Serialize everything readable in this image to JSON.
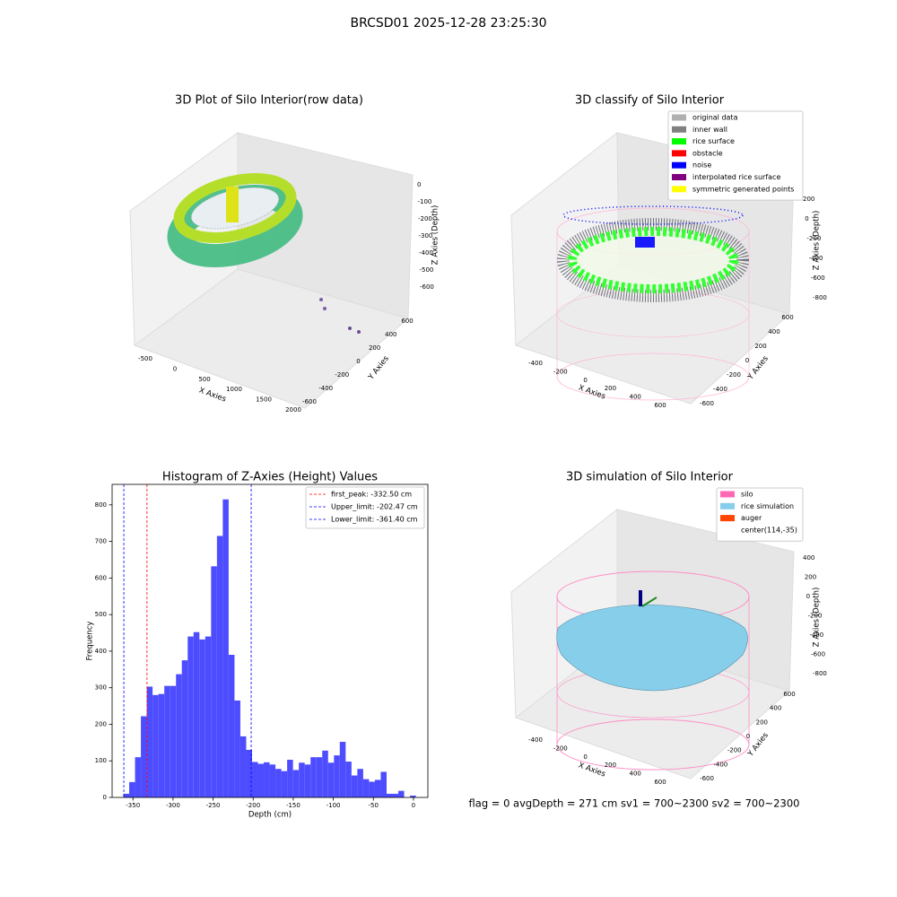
{
  "title": "BRCSD01 2025-12-28 23:25:30",
  "footer": "flag = 0     avgDepth = 271 cm  sv1 = 700~2300  sv2 = 700~2300",
  "chart_data": [
    {
      "type": "scatter3d",
      "title": "3D Plot of Silo Interior(row data)",
      "xlabel": "X Axies",
      "ylabel": "Y Axies",
      "zlabel": "Z Axies (Depth)",
      "xticks": [
        -500,
        0,
        500,
        1000,
        1500,
        2000
      ],
      "yticks": [
        -600,
        -400,
        -200,
        0,
        200,
        400,
        600
      ],
      "zticks": [
        0,
        -100,
        -200,
        -300,
        -400,
        -500,
        -600
      ]
    },
    {
      "type": "scatter3d",
      "title": "3D classify of Silo Interior",
      "xlabel": "X Axies",
      "ylabel": "Y Axies",
      "zlabel": "Z Axies (Depth)",
      "xticks": [
        -400,
        -200,
        0,
        200,
        400,
        600
      ],
      "yticks": [
        -600,
        -400,
        -200,
        0,
        200,
        400,
        600
      ],
      "zticks": [
        200,
        0,
        -200,
        -400,
        -600,
        -800
      ],
      "legend": [
        {
          "name": "original data",
          "color": "#b0b0b0"
        },
        {
          "name": "inner wall",
          "color": "#808080"
        },
        {
          "name": "rice surface",
          "color": "#00ff00"
        },
        {
          "name": "obstacle",
          "color": "#ff0000"
        },
        {
          "name": "noise",
          "color": "#0000ff"
        },
        {
          "name": "interpolated rice surface",
          "color": "#800080"
        },
        {
          "name": "symmetric generated points",
          "color": "#ffff00"
        }
      ]
    },
    {
      "type": "histogram",
      "title": "Histogram of Z-Axies (Height) Values",
      "xlabel": "Depth (cm)",
      "ylabel": "Frequency",
      "color": "#4d4dff",
      "bins": [
        -362,
        -354.7,
        -347.4,
        -340.1,
        -332.8,
        -325.5,
        -318.2,
        -310.9,
        -303.6,
        -296.3,
        -289,
        -281.7,
        -274.4,
        -267.1,
        -259.8,
        -252.5,
        -245.2,
        -237.9,
        -230.6,
        -223.3,
        -216,
        -208.7,
        -201.4,
        -194.1,
        -186.8,
        -179.5,
        -172.2,
        -164.9,
        -157.6,
        -150.3,
        -143,
        -135.7,
        -128.4,
        -121.1,
        -113.8,
        -106.5,
        -99.2,
        -91.9,
        -84.6,
        -77.3,
        -70,
        -62.7,
        -55.4,
        -48.1,
        -40.8,
        -33.5,
        -26.2,
        -18.9,
        -11.6,
        -4.3,
        3
      ],
      "values": [
        10,
        42,
        110,
        222,
        303,
        280,
        283,
        305,
        305,
        337,
        375,
        440,
        452,
        432,
        440,
        632,
        715,
        815,
        390,
        265,
        167,
        130,
        97,
        92,
        96,
        90,
        78,
        72,
        103,
        75,
        95,
        90,
        110,
        110,
        128,
        95,
        115,
        152,
        98,
        60,
        78,
        50,
        43,
        48,
        70,
        10,
        10,
        18,
        0,
        5
      ],
      "xlim": [
        -376,
        18
      ],
      "ylim": [
        0,
        856
      ],
      "xticks": [
        -350,
        -300,
        -250,
        -200,
        -150,
        -100,
        -50,
        0
      ],
      "yticks": [
        0,
        100,
        200,
        300,
        400,
        500,
        600,
        700,
        800
      ],
      "vlines": [
        {
          "name": "first_peak: -332.50 cm",
          "value": -332.5,
          "color": "#ff0000"
        },
        {
          "name": "Upper_limit: -202.47 cm",
          "value": -202.47,
          "color": "#0000ff"
        },
        {
          "name": "Lower_limit: -361.40 cm",
          "value": -361.4,
          "color": "#0000ff"
        }
      ]
    },
    {
      "type": "scatter3d",
      "title": "3D simulation of Silo Interior",
      "xlabel": "X Axies",
      "ylabel": "Y Axies",
      "zlabel": "Z Axies (Depth)",
      "xticks": [
        -400,
        -200,
        0,
        200,
        400,
        600
      ],
      "yticks": [
        -600,
        -400,
        -200,
        0,
        200,
        400,
        600
      ],
      "zticks": [
        400,
        200,
        0,
        -200,
        -400,
        -600,
        -800
      ],
      "legend": [
        {
          "name": "silo",
          "color": "#ff69b4"
        },
        {
          "name": "rice simulation",
          "color": "#87ceeb"
        },
        {
          "name": "auger",
          "color": "#ff4500"
        },
        {
          "name": "center(114,-35)",
          "color": "#ffffff"
        }
      ]
    }
  ]
}
